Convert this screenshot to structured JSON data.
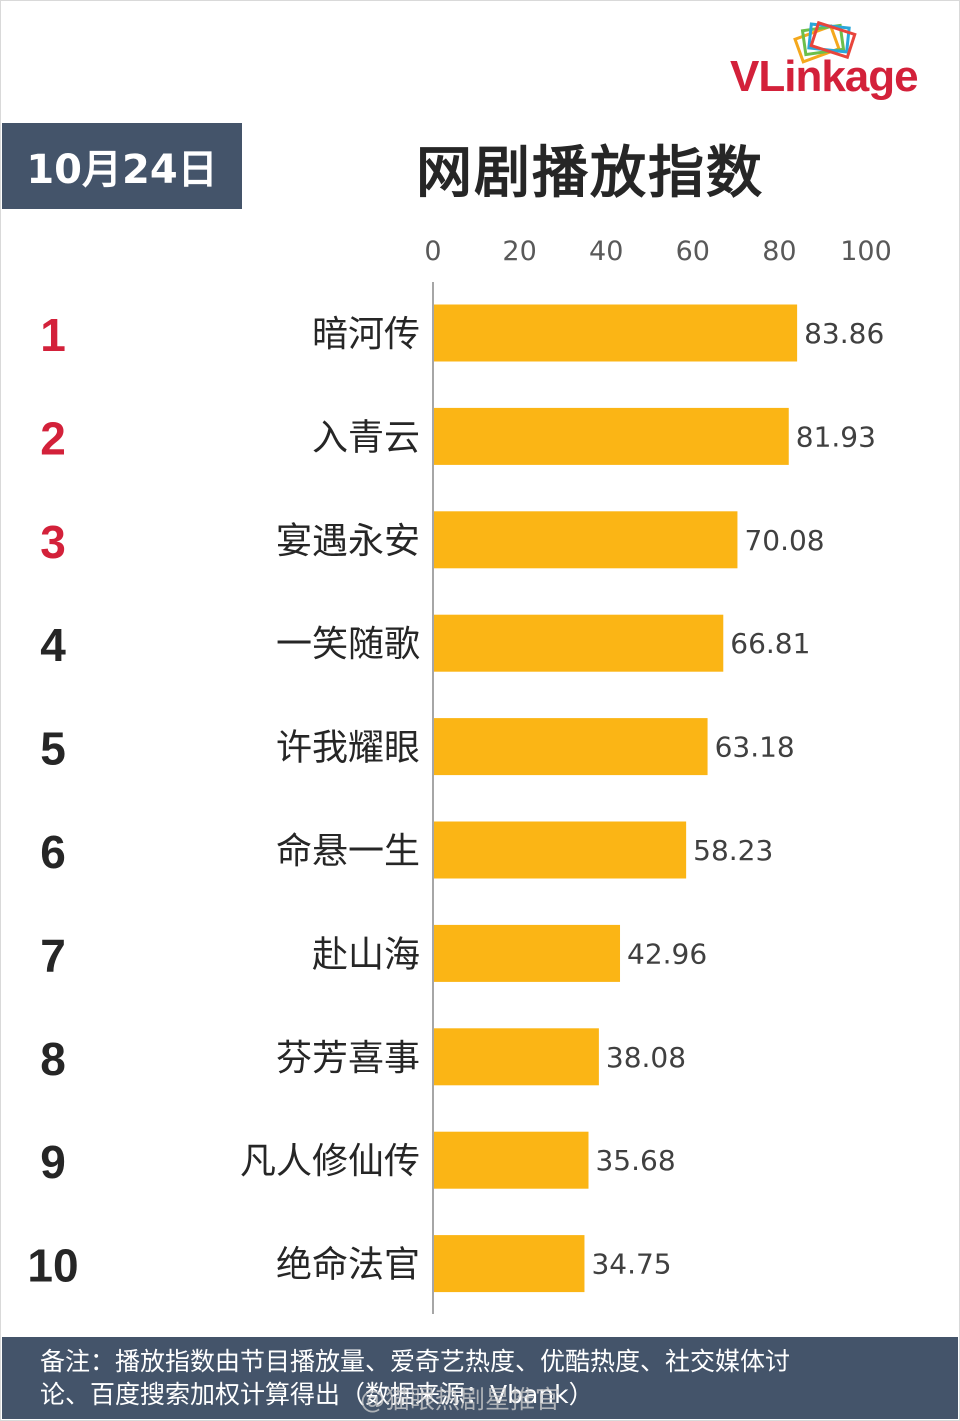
{
  "header": {
    "date": "10月24日",
    "title": "网剧播放指数",
    "logo_text": "VLinkage"
  },
  "colors": {
    "bar": "#fbb515",
    "top3_rank": "#d3213a",
    "rank": "#262626",
    "panel": "#44546a",
    "axis": "#a6a6a6"
  },
  "chart_data": {
    "type": "bar",
    "orientation": "horizontal",
    "title": "网剧播放指数",
    "ranks": [
      "1",
      "2",
      "3",
      "4",
      "5",
      "6",
      "7",
      "8",
      "9",
      "10"
    ],
    "categories": [
      "暗河传",
      "入青云",
      "宴遇永安",
      "一笑随歌",
      "许我耀眼",
      "命悬一生",
      "赴山海",
      "芬芳喜事",
      "凡人修仙传",
      "绝命法官"
    ],
    "values": [
      83.86,
      81.93,
      70.08,
      66.81,
      63.18,
      58.23,
      42.96,
      38.08,
      35.68,
      34.75
    ],
    "value_labels": [
      "83.86",
      "81.93",
      "70.08",
      "66.81",
      "63.18",
      "58.23",
      "42.96",
      "38.08",
      "35.68",
      "34.75"
    ],
    "xlim": [
      0,
      100
    ],
    "xticks": [
      "0",
      "20",
      "40",
      "60",
      "80",
      "100"
    ],
    "xtick_position": "top",
    "grid": false,
    "legend": "none"
  },
  "footer": {
    "note_line1": "备注：播放指数由节目播放量、爱奇艺热度、优酷热度、社交媒体讨",
    "note_line2": "论、百度搜索加权计算得出（数据来源：Vbank）"
  },
  "watermark": "@猫眼热剧星推官"
}
